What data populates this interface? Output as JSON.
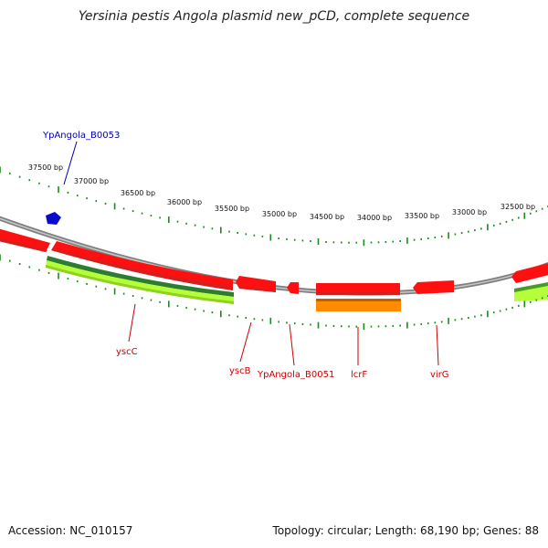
{
  "title": "Yersinia pestis Angola plasmid new_pCD, complete sequence",
  "accession": "Accession: NC_010157",
  "summary": "Topology: circular; Length: 68,190 bp; Genes: 88",
  "colors": {
    "backbone": "#8a8a8a",
    "forward_gene": "#ff1a1a",
    "reverse_top_gene": "#0000cc",
    "dark_green": "#2e8b2e",
    "light_green": "#aaff33",
    "orange": "#ff8c00",
    "tick": "#1a8a1a",
    "label_red": "#cc0000",
    "label_blue": "#0000aa"
  },
  "scale_labels": [
    "37500 bp",
    "37000 bp",
    "36500 bp",
    "36000 bp",
    "35500 bp",
    "35000 bp",
    "34500 bp",
    "34000 bp",
    "33500 bp",
    "33000 bp",
    "32500 bp"
  ],
  "gene_labels": [
    {
      "text": "YpAngola_B0053",
      "color": "blue"
    },
    {
      "text": "yscC",
      "color": "red"
    },
    {
      "text": "yscB",
      "color": "red"
    },
    {
      "text": "YpAngola_B0051",
      "color": "red"
    },
    {
      "text": "lcrF",
      "color": "red"
    },
    {
      "text": "virG",
      "color": "red"
    }
  ]
}
